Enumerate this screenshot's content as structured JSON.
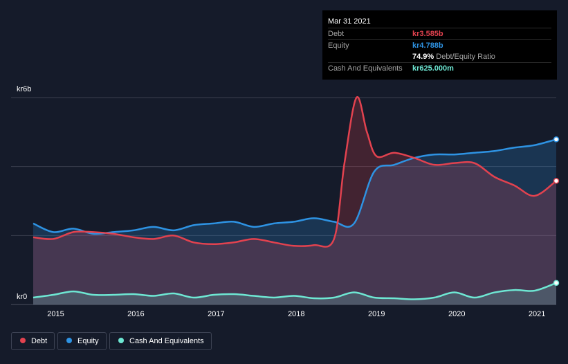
{
  "tooltip": {
    "date": "Mar 31 2021",
    "debt_label": "Debt",
    "debt_value": "kr3.585b",
    "equity_label": "Equity",
    "equity_value": "kr4.788b",
    "ratio_value": "74.9%",
    "ratio_label": "Debt/Equity Ratio",
    "cash_label": "Cash And Equivalents",
    "cash_value": "kr625.000m"
  },
  "legend": {
    "debt": "Debt",
    "equity": "Equity",
    "cash": "Cash And Equivalents"
  },
  "colors": {
    "debt": "#e2424f",
    "equity": "#2e93e3",
    "cash": "#6ee7d3",
    "background": "#151b2a",
    "grid": "#3a3f4e"
  },
  "chart_data": {
    "type": "area",
    "title": "",
    "xlabel": "",
    "ylabel": "",
    "ylim": [
      0,
      6
    ],
    "xlim": [
      2014.72,
      2021.24
    ],
    "y_ticks": [
      {
        "value": 0,
        "label": "kr0"
      },
      {
        "value": 6,
        "label": "kr6b"
      }
    ],
    "x_ticks": [
      {
        "value": 2015,
        "label": "2015"
      },
      {
        "value": 2016,
        "label": "2016"
      },
      {
        "value": 2017,
        "label": "2017"
      },
      {
        "value": 2018,
        "label": "2018"
      },
      {
        "value": 2019,
        "label": "2019"
      },
      {
        "value": 2020,
        "label": "2020"
      },
      {
        "value": 2021,
        "label": "2021"
      }
    ],
    "series": [
      {
        "name": "Equity",
        "key": "equity",
        "x": [
          2014.72,
          2014.97,
          2015.22,
          2015.47,
          2015.72,
          2015.97,
          2016.22,
          2016.47,
          2016.72,
          2016.97,
          2017.22,
          2017.47,
          2017.72,
          2017.97,
          2018.22,
          2018.47,
          2018.72,
          2018.97,
          2019.22,
          2019.47,
          2019.72,
          2019.97,
          2020.22,
          2020.47,
          2020.72,
          2020.97,
          2021.24
        ],
        "values": [
          2.35,
          2.1,
          2.2,
          2.05,
          2.1,
          2.15,
          2.25,
          2.15,
          2.3,
          2.35,
          2.4,
          2.25,
          2.35,
          2.4,
          2.5,
          2.4,
          2.35,
          3.85,
          4.05,
          4.25,
          4.35,
          4.35,
          4.4,
          4.45,
          4.55,
          4.62,
          4.788
        ]
      },
      {
        "name": "Debt",
        "key": "debt",
        "x": [
          2014.72,
          2014.97,
          2015.22,
          2015.47,
          2015.72,
          2015.97,
          2016.22,
          2016.47,
          2016.72,
          2016.97,
          2017.22,
          2017.47,
          2017.72,
          2017.97,
          2018.22,
          2018.47,
          2018.6,
          2018.75,
          2018.88,
          2019.0,
          2019.22,
          2019.47,
          2019.72,
          2019.97,
          2020.22,
          2020.47,
          2020.72,
          2020.97,
          2021.24
        ],
        "values": [
          1.95,
          1.9,
          2.1,
          2.1,
          2.05,
          1.95,
          1.9,
          2.0,
          1.8,
          1.75,
          1.8,
          1.9,
          1.8,
          1.7,
          1.72,
          1.9,
          4.1,
          6.0,
          5.0,
          4.3,
          4.4,
          4.25,
          4.05,
          4.1,
          4.1,
          3.7,
          3.45,
          3.15,
          3.585
        ]
      },
      {
        "name": "Cash And Equivalents",
        "key": "cash",
        "x": [
          2014.72,
          2014.97,
          2015.22,
          2015.47,
          2015.72,
          2015.97,
          2016.22,
          2016.47,
          2016.72,
          2016.97,
          2017.22,
          2017.47,
          2017.72,
          2017.97,
          2018.22,
          2018.47,
          2018.72,
          2018.97,
          2019.22,
          2019.47,
          2019.72,
          2019.97,
          2020.22,
          2020.47,
          2020.72,
          2020.97,
          2021.24
        ],
        "values": [
          0.2,
          0.28,
          0.38,
          0.28,
          0.28,
          0.3,
          0.25,
          0.32,
          0.2,
          0.28,
          0.3,
          0.25,
          0.2,
          0.25,
          0.18,
          0.2,
          0.35,
          0.2,
          0.18,
          0.15,
          0.2,
          0.35,
          0.2,
          0.35,
          0.42,
          0.4,
          0.625
        ]
      }
    ]
  }
}
